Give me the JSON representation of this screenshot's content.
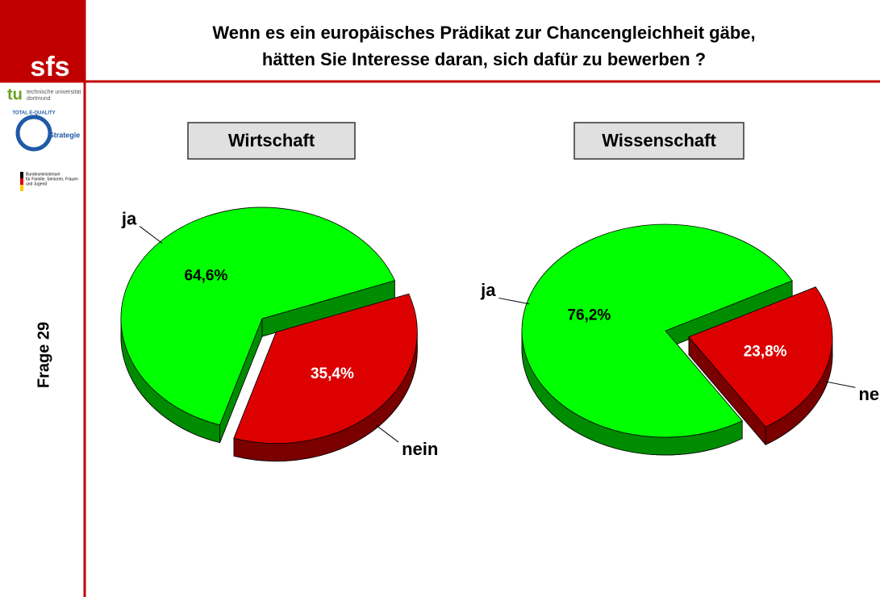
{
  "header": {
    "title_lines": [
      "Wenn es ein europäisches Prädikat zur Chancengleichheit gäbe,",
      "hätten Sie Interesse daran, sich dafür zu bewerben ?"
    ]
  },
  "sidebar": {
    "logo": "sfs",
    "university": [
      "technische universität",
      "dortmund"
    ],
    "quality": [
      "TOTAL E-QUALITY",
      "Strategie"
    ],
    "ministry": [
      "Bundesministerium",
      "für Familie, Senioren, Frauen",
      "und Jugend"
    ],
    "question": "Frage 29"
  },
  "chart_data": [
    {
      "type": "pie",
      "title": "Wirtschaft",
      "categories": [
        "ja",
        "nein"
      ],
      "values": [
        64.6,
        35.4
      ],
      "value_labels": [
        "64,6%",
        "35,4%"
      ],
      "colors": [
        "#00ff00",
        "#dd0000"
      ]
    },
    {
      "type": "pie",
      "title": "Wissenschaft",
      "categories": [
        "ja",
        "nein"
      ],
      "values": [
        76.2,
        23.8
      ],
      "value_labels": [
        "76,2%",
        "23,8%"
      ],
      "colors": [
        "#00ff00",
        "#dd0000"
      ]
    }
  ]
}
